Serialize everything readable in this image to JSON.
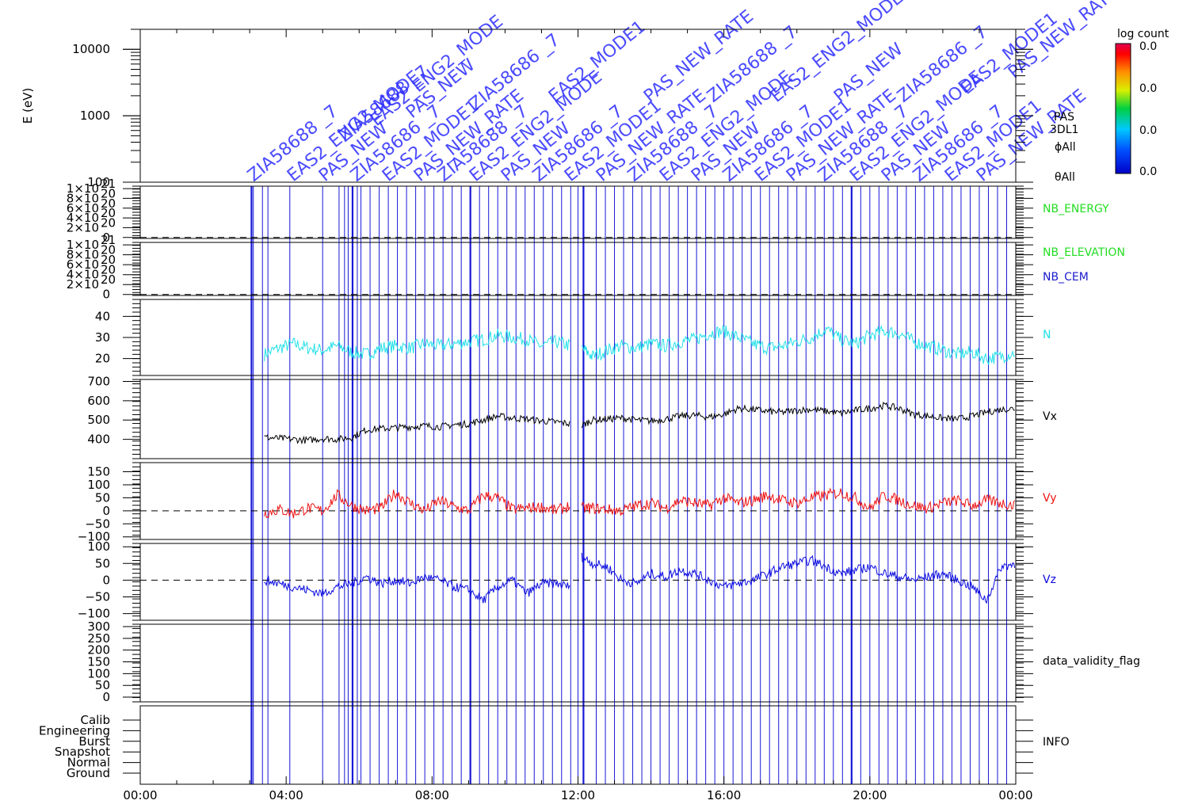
{
  "chart_data": {
    "type": "line",
    "time_axis": {
      "range": [
        "00:00",
        "24:00"
      ],
      "tick_labels": [
        "00:00",
        "04:00",
        "08:00",
        "12:00",
        "16:00",
        "20:00",
        "00:00"
      ],
      "minor_tick_step_hours": 1
    },
    "event_lines_hours": [
      3.05,
      3.1,
      3.35,
      3.5,
      4.1,
      5.0,
      5.45,
      5.6,
      5.7,
      5.82,
      5.95,
      6.05,
      6.3,
      6.55,
      6.8,
      7.05,
      7.3,
      7.55,
      7.8,
      8.05,
      8.3,
      8.55,
      8.8,
      9.05,
      9.3,
      9.55,
      9.8,
      10.05,
      10.3,
      10.55,
      10.8,
      11.05,
      11.3,
      11.55,
      11.8,
      12.0,
      12.15,
      12.5,
      12.75,
      13.0,
      13.25,
      13.5,
      13.75,
      14.0,
      14.25,
      14.5,
      14.75,
      15.0,
      15.25,
      15.5,
      15.75,
      16.0,
      16.25,
      16.5,
      16.75,
      17.0,
      17.25,
      17.5,
      17.75,
      18.0,
      18.25,
      18.5,
      18.75,
      19.0,
      19.25,
      19.5,
      19.75,
      20.0,
      20.25,
      20.5,
      20.75,
      21.0,
      21.25,
      21.5,
      21.75,
      22.0,
      22.25,
      22.5,
      22.75,
      23.0,
      23.25,
      23.5,
      23.75
    ],
    "event_lines_thick_hours": [
      3.05,
      5.82,
      9.05,
      12.15,
      19.5
    ],
    "panels": [
      {
        "id": "energy-spectrogram",
        "ylabel": "E (eV)",
        "scale": "log",
        "ylim": [
          100,
          20000
        ],
        "tick_values": [
          100,
          1000,
          10000
        ],
        "tick_labels": [
          "100",
          "1000",
          "10000"
        ],
        "side_labels": [
          {
            "text": "log count",
            "color": "#000000"
          },
          {
            "text": "PAS",
            "color": "#000000"
          },
          {
            "text": "3DL1",
            "color": "#000000"
          },
          {
            "text": "ϕAll",
            "color": "#000000"
          },
          {
            "text": "θAll",
            "color": "#000000"
          }
        ],
        "colorbar": {
          "tick_labels": [
            "0.0",
            "0.0",
            "0.0",
            "0.0"
          ]
        },
        "annotations": [
          "ZIA58688 _7",
          "EAS2_ENG2_MODE",
          "PAS_NEW",
          "ZIA58686 _7",
          "EAS2_MODE1",
          "PAS_NEW_RATE"
        ]
      },
      {
        "id": "nb-energy",
        "ylabel": "",
        "ylim": [
          -2e+19,
          1.05e+21
        ],
        "tick_values": [
          0,
          2e+20,
          4e+20,
          6e+20,
          8e+20,
          1e+21
        ],
        "tick_labels": [
          {
            "mant": "0",
            "exp": ""
          },
          {
            "mant": "2×10",
            "exp": "20"
          },
          {
            "mant": "4×10",
            "exp": "20"
          },
          {
            "mant": "6×10",
            "exp": "20"
          },
          {
            "mant": "8×10",
            "exp": "20"
          },
          {
            "mant": "1×10",
            "exp": "21"
          }
        ],
        "zero_line": true,
        "series": [
          {
            "name": "NB_ENERGY",
            "color": "#22dd22",
            "x": [],
            "y": []
          }
        ]
      },
      {
        "id": "nb-elevation",
        "ylabel": "",
        "ylim": [
          -2e+19,
          1.05e+21
        ],
        "tick_values": [
          0,
          2e+20,
          4e+20,
          6e+20,
          8e+20,
          1e+21
        ],
        "tick_labels": [
          {
            "mant": "0",
            "exp": ""
          },
          {
            "mant": "2×10",
            "exp": "20"
          },
          {
            "mant": "4×10",
            "exp": "20"
          },
          {
            "mant": "6×10",
            "exp": "20"
          },
          {
            "mant": "8×10",
            "exp": "20"
          },
          {
            "mant": "1×10",
            "exp": "21"
          }
        ],
        "zero_line": true,
        "series": [
          {
            "name": "NB_ELEVATION",
            "color": "#22dd22",
            "x": [],
            "y": []
          },
          {
            "name": "NB_CEM",
            "color": "#1a1acc",
            "x": [],
            "y": []
          }
        ]
      },
      {
        "id": "density",
        "ylabel": "",
        "ylim": [
          12,
          48
        ],
        "tick_values": [
          20,
          30,
          40
        ],
        "tick_labels": [
          "20",
          "30",
          "40"
        ],
        "series": [
          {
            "name": "N",
            "color": "#22e0e8",
            "x": [
              3.4,
              3.8,
              4.2,
              4.6,
              5.0,
              5.4,
              5.8,
              6.2,
              6.6,
              7.0,
              7.4,
              7.8,
              8.2,
              8.6,
              9.0,
              9.4,
              9.8,
              10.2,
              10.6,
              11.0,
              11.4,
              11.8,
              12.1,
              12.4,
              12.8,
              13.2,
              13.6,
              14.0,
              14.4,
              14.8,
              15.2,
              15.6,
              16.0,
              16.4,
              16.8,
              17.2,
              17.6,
              18.0,
              18.4,
              18.8,
              19.2,
              19.6,
              20.0,
              20.4,
              20.8,
              21.2,
              21.6,
              22.0,
              22.4,
              22.8,
              23.2,
              23.6,
              24.0
            ],
            "y": [
              22,
              25,
              27,
              25,
              24,
              26,
              23,
              22,
              25,
              26,
              25,
              27,
              26,
              27,
              28,
              29,
              31,
              30,
              29,
              26,
              28,
              26,
              25,
              21,
              24,
              26,
              25,
              27,
              26,
              28,
              29,
              32,
              33,
              30,
              27,
              25,
              26,
              28,
              30,
              34,
              29,
              27,
              31,
              33,
              32,
              28,
              26,
              24,
              22,
              23,
              20,
              21,
              23
            ]
          }
        ]
      },
      {
        "id": "vx",
        "ylabel": "",
        "ylim": [
          300,
          710
        ],
        "tick_values": [
          400,
          500,
          600,
          700
        ],
        "tick_labels": [
          "400",
          "500",
          "600",
          "700"
        ],
        "series": [
          {
            "name": "Vx",
            "color": "#000000",
            "x": [
              3.4,
              3.8,
              4.2,
              4.6,
              5.0,
              5.4,
              5.8,
              6.2,
              6.6,
              7.0,
              7.4,
              7.8,
              8.2,
              8.6,
              9.0,
              9.4,
              9.8,
              10.2,
              10.6,
              11.0,
              11.4,
              11.8,
              12.1,
              12.4,
              12.8,
              13.2,
              13.6,
              14.0,
              14.4,
              14.8,
              15.2,
              15.6,
              16.0,
              16.4,
              16.8,
              17.2,
              17.6,
              18.0,
              18.4,
              18.8,
              19.2,
              19.6,
              20.0,
              20.4,
              20.8,
              21.2,
              21.6,
              22.0,
              22.4,
              22.8,
              23.2,
              23.6,
              24.0
            ],
            "y": [
              410,
              405,
              400,
              395,
              405,
              400,
              410,
              450,
              455,
              460,
              465,
              470,
              465,
              475,
              480,
              500,
              520,
              510,
              505,
              495,
              490,
              480,
              470,
              500,
              505,
              510,
              500,
              495,
              505,
              520,
              525,
              515,
              530,
              560,
              555,
              545,
              540,
              550,
              555,
              545,
              535,
              550,
              560,
              575,
              560,
              530,
              520,
              510,
              505,
              520,
              540,
              555,
              560
            ]
          }
        ]
      },
      {
        "id": "vy",
        "ylabel": "",
        "ylim": [
          -110,
          185
        ],
        "tick_values": [
          -100,
          -50,
          0,
          50,
          100,
          150
        ],
        "tick_labels": [
          "−100",
          "−50",
          "0",
          "50",
          "100",
          "150"
        ],
        "zero_line": true,
        "series": [
          {
            "name": "Vy",
            "color": "#ee1111",
            "x": [
              3.4,
              3.8,
              4.2,
              4.6,
              5.0,
              5.4,
              5.8,
              6.2,
              6.6,
              7.0,
              7.4,
              7.8,
              8.2,
              8.6,
              9.0,
              9.4,
              9.8,
              10.2,
              10.6,
              11.0,
              11.4,
              11.8,
              12.1,
              12.4,
              12.8,
              13.2,
              13.6,
              14.0,
              14.4,
              14.8,
              15.2,
              15.6,
              16.0,
              16.4,
              16.8,
              17.2,
              17.6,
              18.0,
              18.4,
              18.8,
              19.2,
              19.6,
              20.0,
              20.4,
              20.8,
              21.2,
              21.6,
              22.0,
              22.4,
              22.8,
              23.2,
              23.6,
              24.0
            ],
            "y": [
              -10,
              5,
              -10,
              10,
              0,
              60,
              20,
              0,
              10,
              70,
              30,
              0,
              40,
              15,
              0,
              60,
              50,
              5,
              10,
              15,
              0,
              20,
              10,
              10,
              5,
              0,
              20,
              30,
              10,
              40,
              30,
              20,
              50,
              30,
              40,
              60,
              40,
              30,
              50,
              60,
              70,
              50,
              10,
              60,
              40,
              20,
              10,
              30,
              40,
              20,
              40,
              30,
              20
            ]
          }
        ]
      },
      {
        "id": "vz",
        "ylabel": "",
        "ylim": [
          -120,
          110
        ],
        "tick_values": [
          -100,
          -50,
          0,
          50,
          100
        ],
        "tick_labels": [
          "−100",
          "−50",
          "0",
          "50",
          "100"
        ],
        "zero_line": true,
        "series": [
          {
            "name": "Vz",
            "color": "#0a0ae0",
            "x": [
              3.4,
              3.8,
              4.2,
              4.6,
              5.0,
              5.4,
              5.8,
              6.2,
              6.6,
              7.0,
              7.4,
              7.8,
              8.2,
              8.6,
              9.0,
              9.4,
              9.8,
              10.2,
              10.6,
              11.0,
              11.4,
              11.8,
              12.1,
              12.4,
              12.8,
              13.2,
              13.6,
              14.0,
              14.4,
              14.8,
              15.2,
              15.6,
              16.0,
              16.4,
              16.8,
              17.2,
              17.6,
              18.0,
              18.4,
              18.8,
              19.2,
              19.6,
              20.0,
              20.4,
              20.8,
              21.2,
              21.6,
              22.0,
              22.4,
              22.8,
              23.2,
              23.6,
              24.0
            ],
            "y": [
              0,
              -10,
              -20,
              -30,
              -40,
              -20,
              -10,
              10,
              -10,
              0,
              -10,
              10,
              0,
              -20,
              -30,
              -60,
              -20,
              0,
              -40,
              -10,
              -10,
              -20,
              70,
              50,
              40,
              0,
              -10,
              20,
              10,
              30,
              20,
              0,
              -20,
              -10,
              0,
              20,
              40,
              50,
              60,
              40,
              20,
              30,
              40,
              20,
              10,
              0,
              10,
              20,
              0,
              -20,
              -60,
              40,
              50
            ]
          }
        ]
      },
      {
        "id": "validity",
        "ylabel": "",
        "ylim": [
          -20,
          310
        ],
        "tick_values": [
          0,
          50,
          100,
          150,
          200,
          250,
          300
        ],
        "tick_labels": [
          "0",
          "50",
          "100",
          "150",
          "200",
          "250",
          "300"
        ],
        "series": [
          {
            "name": "data_validity_flag",
            "color": "#000000",
            "x": [],
            "y": []
          }
        ]
      },
      {
        "id": "info",
        "ylabel": "",
        "categories": [
          "Ground",
          "Normal",
          "Snapshot",
          "Burst",
          "Engineering",
          "Calib"
        ],
        "series": [
          {
            "name": "INFO",
            "color": "#000000",
            "x": [],
            "y": []
          }
        ]
      }
    ]
  }
}
